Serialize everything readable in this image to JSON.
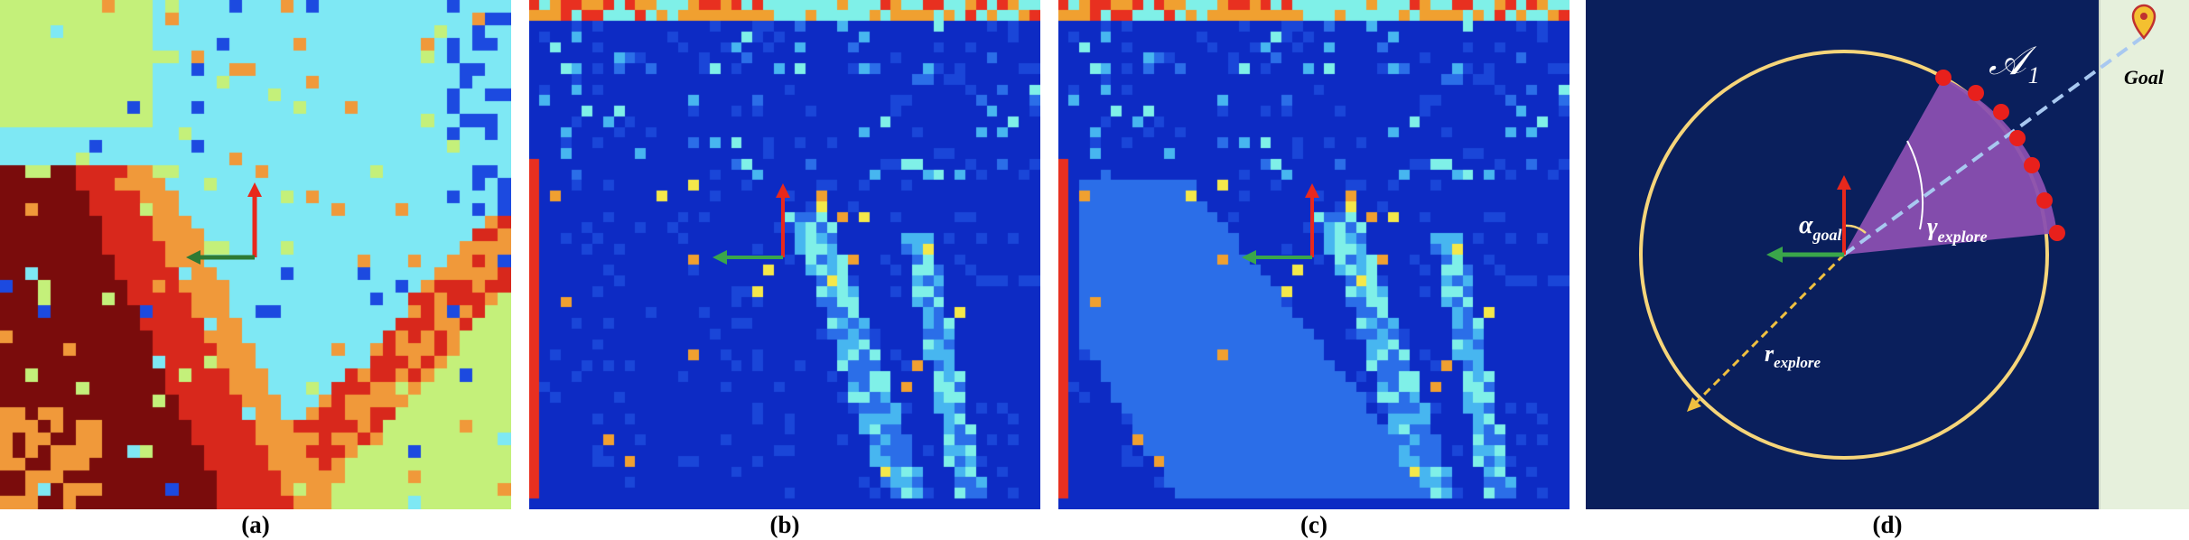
{
  "figure": {
    "captions": [
      "(a)",
      "(b)",
      "(c)",
      "(d)"
    ]
  },
  "panel_d": {
    "label_area": "𝒜",
    "label_area_sub": "1",
    "label_goal": "Goal",
    "label_alpha": "α",
    "label_alpha_sub": "goal",
    "label_gamma": "γ",
    "label_gamma_sub": "explore",
    "label_r": "r",
    "label_r_sub": "explore"
  },
  "colors": {
    "terrain_dark_red": "#7a0c0c",
    "terrain_red": "#d8281c",
    "terrain_orange": "#f0993a",
    "terrain_light_green": "#c4f07a",
    "terrain_cyan": "#7ee8f4",
    "terrain_blue": "#1c4ae0",
    "terrain_navy": "#0a1f8a",
    "heat_base": "#0d2bc4",
    "panel_d_bg": "#0a1f5c",
    "panel_d_strip": "#e6f0dc",
    "circle": "#f6d57a",
    "sector": "#8a4fb0",
    "red_dot": "#e8201c",
    "arrow_red": "#e8281c",
    "arrow_green": "#3aa64a",
    "dashed_blue": "#a8c8f0",
    "dashed_yellow": "#f0c040"
  }
}
